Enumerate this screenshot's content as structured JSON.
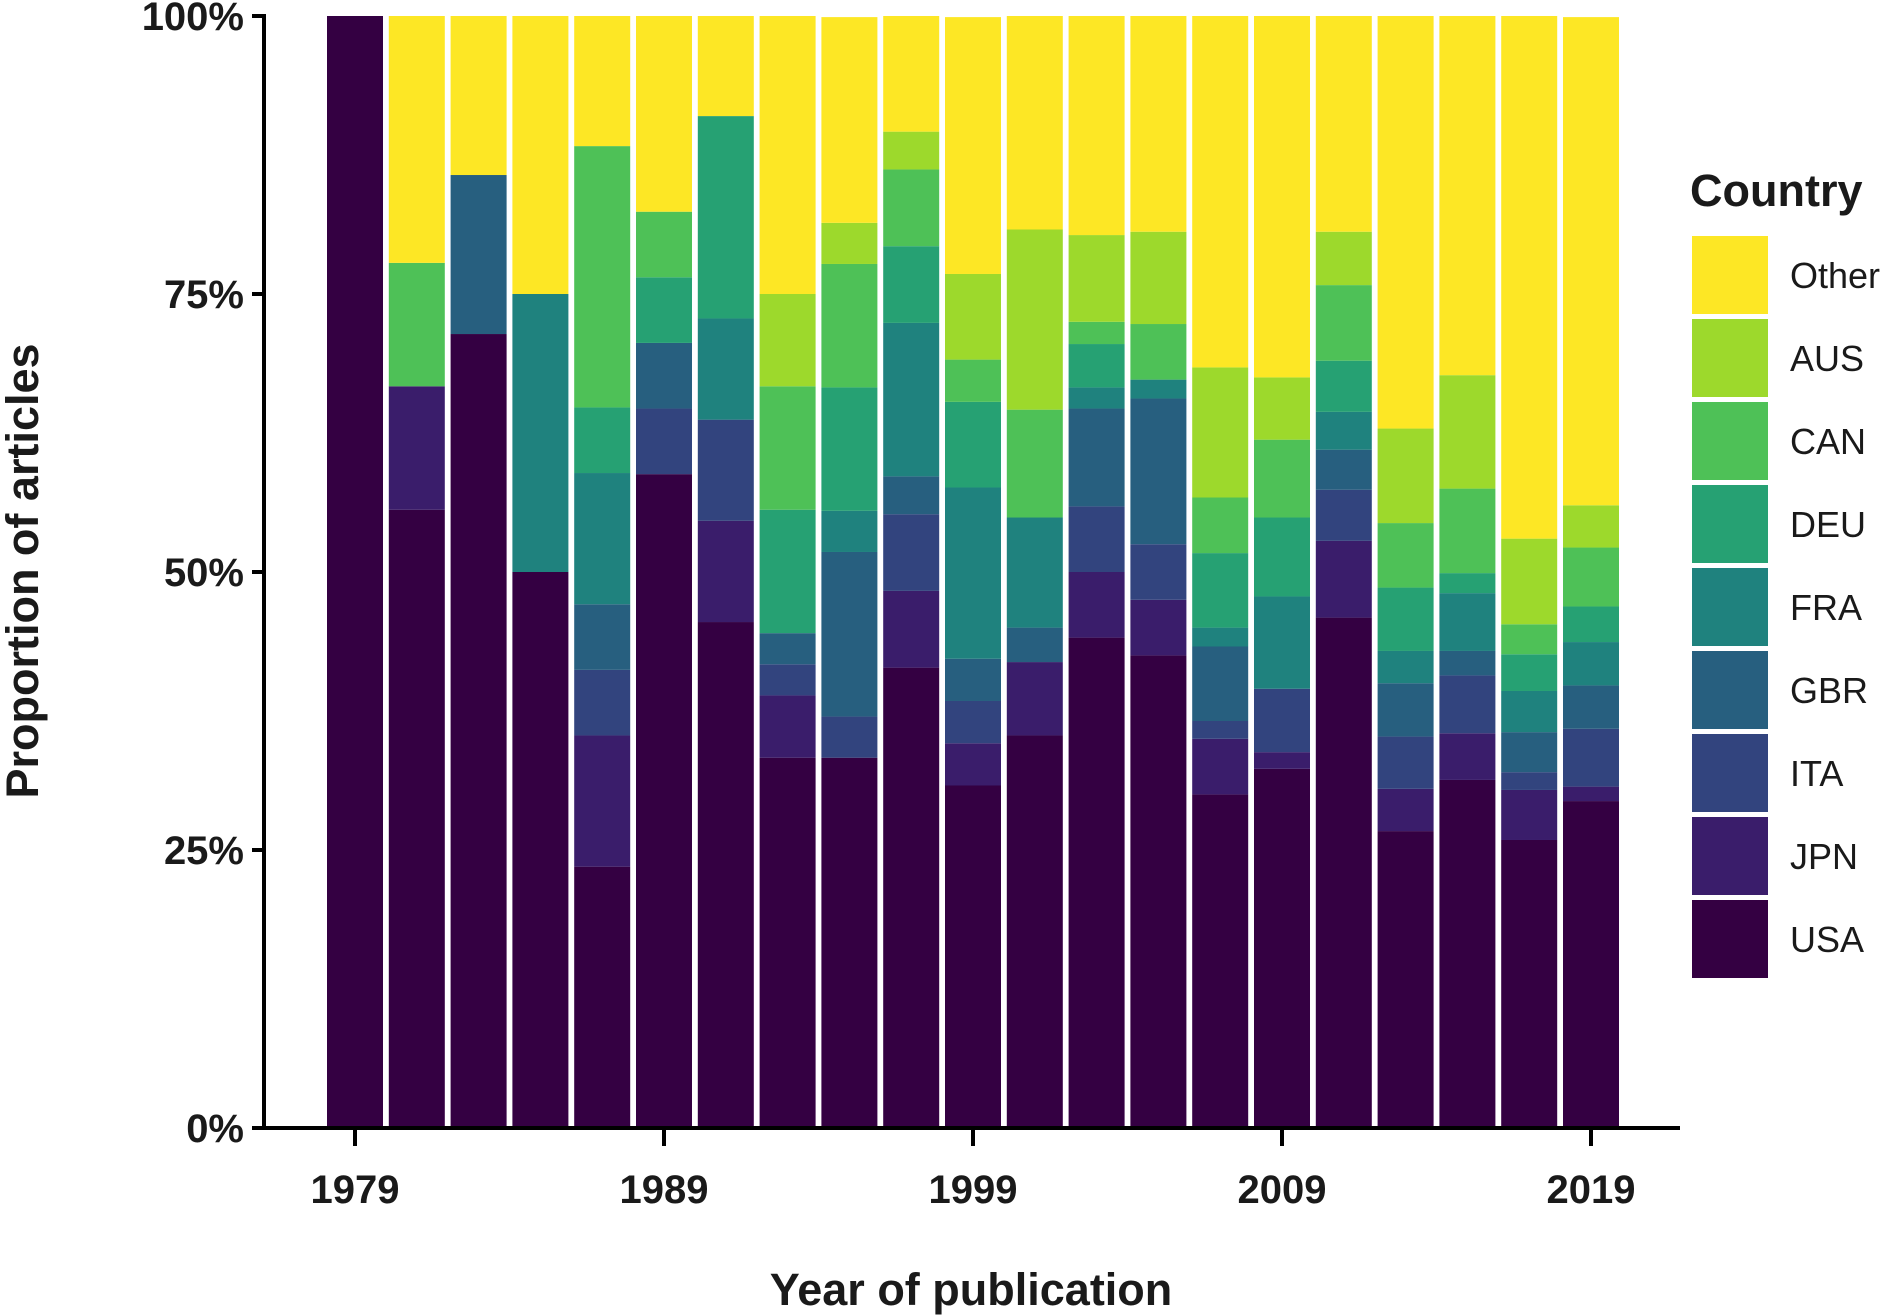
{
  "chart_data": {
    "type": "bar",
    "stacked": true,
    "normalized": true,
    "title": "",
    "xlabel": "Year of publication",
    "ylabel": "Proportion of articles",
    "ylim": [
      0,
      100
    ],
    "y_ticks": [
      "0%",
      "25%",
      "50%",
      "75%",
      "100%"
    ],
    "x_tick_labels": [
      "1979",
      "1989",
      "1999",
      "2009",
      "2019"
    ],
    "x_tick_years": [
      1979,
      1989,
      1999,
      2009,
      2019
    ],
    "grid": false,
    "legend_position": "right",
    "legend_title": "Country",
    "categories": [
      1979,
      1981,
      1983,
      1985,
      1987,
      1989,
      1991,
      1993,
      1995,
      1997,
      1999,
      2001,
      2003,
      2005,
      2007,
      2009,
      2011,
      2013,
      2015,
      2017,
      2019
    ],
    "series": [
      {
        "name": "USA",
        "color": "#340042",
        "values": [
          100,
          55.6,
          71.4,
          50,
          23.5,
          58.8,
          45.5,
          33.3,
          33.3,
          41.4,
          30.8,
          35.3,
          44.1,
          42.5,
          30.0,
          32.3,
          45.9,
          26.7,
          31.3,
          25.9,
          29.4
        ]
      },
      {
        "name": "JPN",
        "color": "#3a1d6b",
        "values": [
          0,
          11.1,
          0,
          0,
          11.8,
          0,
          9.1,
          5.6,
          0,
          6.9,
          3.8,
          6.6,
          5.9,
          5.0,
          5.0,
          1.5,
          6.9,
          3.8,
          4.2,
          4.5,
          1.3
        ]
      },
      {
        "name": "ITA",
        "color": "#32447e",
        "values": [
          0,
          0,
          0,
          0,
          5.9,
          5.9,
          9.1,
          2.8,
          3.7,
          6.9,
          3.8,
          0,
          5.9,
          5.0,
          1.6,
          5.7,
          4.6,
          4.7,
          5.2,
          1.6,
          5.2
        ]
      },
      {
        "name": "GBR",
        "color": "#275f7f",
        "values": [
          0,
          0,
          14.3,
          0,
          5.9,
          5.9,
          0,
          2.8,
          14.8,
          3.4,
          3.8,
          3.1,
          8.8,
          13.1,
          6.7,
          0,
          3.6,
          4.8,
          2.2,
          3.6,
          3.9
        ]
      },
      {
        "name": "FRA",
        "color": "#1f827e",
        "values": [
          0,
          0,
          0,
          25,
          11.8,
          0,
          9.1,
          0,
          3.7,
          13.8,
          15.4,
          9.9,
          1.9,
          1.7,
          1.7,
          8.3,
          3.4,
          2.9,
          5.2,
          3.7,
          3.9
        ]
      },
      {
        "name": "DEU",
        "color": "#26a173",
        "values": [
          0,
          0,
          0,
          0,
          5.9,
          5.9,
          18.2,
          11.1,
          11.1,
          6.9,
          7.7,
          0,
          3.9,
          0,
          6.7,
          7.1,
          4.6,
          5.7,
          1.8,
          3.3,
          3.2
        ]
      },
      {
        "name": "CAN",
        "color": "#4ec157",
        "values": [
          0,
          11.1,
          0,
          0,
          23.5,
          5.9,
          0,
          11.1,
          11.1,
          6.9,
          3.8,
          9.7,
          2.0,
          5.0,
          5.0,
          7.0,
          6.8,
          5.8,
          7.6,
          2.7,
          5.3
        ]
      },
      {
        "name": "AUS",
        "color": "#9dd92c",
        "values": [
          0,
          0,
          0,
          0,
          0,
          0,
          0,
          8.3,
          3.7,
          3.4,
          7.7,
          16.2,
          7.8,
          8.3,
          11.7,
          5.6,
          4.8,
          8.5,
          10.2,
          7.7,
          3.8
        ]
      },
      {
        "name": "Other",
        "color": "#fde725",
        "values": [
          0,
          22.2,
          14.3,
          25,
          11.8,
          17.6,
          9.1,
          25.0,
          18.5,
          17.2,
          23.1,
          19.2,
          21.1,
          19.4,
          31.6,
          36.7,
          23.0,
          37.1,
          32.3,
          48.9,
          43.9
        ]
      }
    ],
    "legend_order": [
      "Other",
      "AUS",
      "CAN",
      "DEU",
      "FRA",
      "GBR",
      "ITA",
      "JPN",
      "USA"
    ]
  }
}
